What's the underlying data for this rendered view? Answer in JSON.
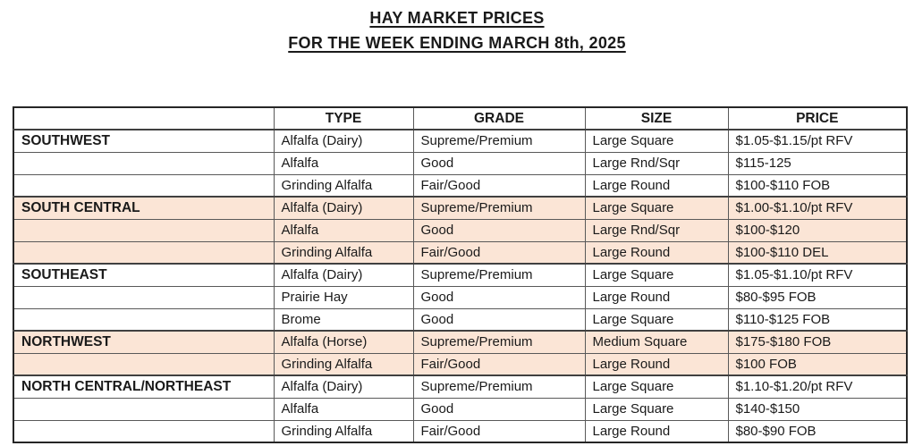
{
  "page": {
    "title_line1": "HAY MARKET PRICES",
    "title_line2": "FOR THE WEEK ENDING MARCH 8th, 2025"
  },
  "colors": {
    "row_highlight": "#fbe5d6",
    "text": "#1a1a1a",
    "background": "#ffffff"
  },
  "table": {
    "headers": {
      "region": "",
      "type": "TYPE",
      "grade": "GRADE",
      "size": "SIZE",
      "price": "PRICE"
    },
    "rows": [
      {
        "region": "SOUTHWEST",
        "type": "Alfalfa (Dairy)",
        "grade": "Supreme/Premium",
        "size": "Large Square",
        "price": "$1.05-$1.15/pt RFV",
        "highlight": false
      },
      {
        "region": "",
        "type": "Alfalfa",
        "grade": "Good",
        "size": "Large Rnd/Sqr",
        "price": "$115-125",
        "highlight": false
      },
      {
        "region": "",
        "type": "Grinding Alfalfa",
        "grade": "Fair/Good",
        "size": "Large Round",
        "price": "$100-$110 FOB",
        "highlight": false
      },
      {
        "region": "SOUTH CENTRAL",
        "type": "Alfalfa (Dairy)",
        "grade": "Supreme/Premium",
        "size": "Large Square",
        "price": "$1.00-$1.10/pt RFV",
        "highlight": true
      },
      {
        "region": "",
        "type": "Alfalfa",
        "grade": "Good",
        "size": "Large Rnd/Sqr",
        "price": "$100-$120",
        "highlight": true
      },
      {
        "region": "",
        "type": "Grinding Alfalfa",
        "grade": "Fair/Good",
        "size": "Large Round",
        "price": "$100-$110 DEL",
        "highlight": true
      },
      {
        "region": "SOUTHEAST",
        "type": "Alfalfa (Dairy)",
        "grade": "Supreme/Premium",
        "size": "Large Square",
        "price": "$1.05-$1.10/pt RFV",
        "highlight": false
      },
      {
        "region": "",
        "type": "Prairie Hay",
        "grade": "Good",
        "size": "Large Round",
        "price": "$80-$95 FOB",
        "highlight": false
      },
      {
        "region": "",
        "type": "Brome",
        "grade": "Good",
        "size": "Large Square",
        "price": "$110-$125 FOB",
        "highlight": false
      },
      {
        "region": "NORTHWEST",
        "type": "Alfalfa (Horse)",
        "grade": "Supreme/Premium",
        "size": "Medium Square",
        "price": "$175-$180 FOB",
        "highlight": true
      },
      {
        "region": "",
        "type": "Grinding Alfalfa",
        "grade": "Fair/Good",
        "size": "Large Round",
        "price": "$100 FOB",
        "highlight": true
      },
      {
        "region": "NORTH CENTRAL/NORTHEAST",
        "type": "Alfalfa (Dairy)",
        "grade": "Supreme/Premium",
        "size": "Large Square",
        "price": "$1.10-$1.20/pt RFV",
        "highlight": false
      },
      {
        "region": "",
        "type": "Alfalfa",
        "grade": "Good",
        "size": "Large Square",
        "price": "$140-$150",
        "highlight": false
      },
      {
        "region": "",
        "type": "Grinding Alfalfa",
        "grade": "Fair/Good",
        "size": "Large Round",
        "price": "$80-$90 FOB",
        "highlight": false
      }
    ]
  }
}
